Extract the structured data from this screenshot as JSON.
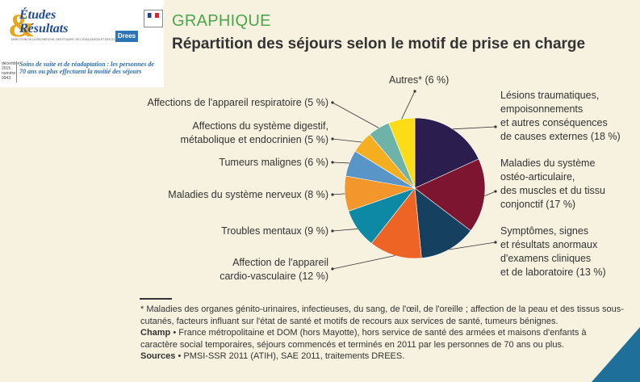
{
  "brand": {
    "name_line1": "Études",
    "name_line2": "Résultats",
    "tagline": "DIRECTION DE LA RECHERCHE, DES ÉTUDES, DE L'ÉVALUATION ET DES STATISTIQUES",
    "drees_logo_text": "Drees",
    "issue_month": "décembre",
    "issue_year": "2015",
    "issue_label": "numéro",
    "issue_number": "0943",
    "issue_title": "Soins de suite et de réadaptation : les personnes de 70 ans ou plus effectuent la moitié des séjours"
  },
  "section_label": "GRAPHIQUE",
  "title": "Répartition des séjours selon le motif de prise en charge",
  "chart_data": {
    "type": "pie",
    "title": "Répartition des séjours selon le motif de prise en charge",
    "start": "top, clockwise",
    "slices": [
      {
        "label": "Lésions traumatiques, empoisonnements et autres conséquences de causes externes (18 %)",
        "value": 18,
        "color": "#2b1e4e"
      },
      {
        "label": "Maladies du système ostéo-articulaire, des muscles et du tissu conjonctif (17 %)",
        "value": 17,
        "color": "#7d1530"
      },
      {
        "label": "Symptômes, signes et résultats anormaux d'examens cliniques et de laboratoire (13 %)",
        "value": 13,
        "color": "#16405f"
      },
      {
        "label": "Affection de l'appareil cardio-vasculaire (12 %)",
        "value": 12,
        "color": "#ee6424"
      },
      {
        "label": "Troubles mentaux (9 %)",
        "value": 9,
        "color": "#0d88a5"
      },
      {
        "label": "Maladies du système nerveux (8 %)",
        "value": 8,
        "color": "#f3972d"
      },
      {
        "label": "Tumeurs malignes (6 %)",
        "value": 6,
        "color": "#5a95c7"
      },
      {
        "label": "Affections du système digestif, métabolique et endocrinien (5 %)",
        "value": 5,
        "color": "#f5ae1f"
      },
      {
        "label": "Affections de l'appareil respiratoire (5 %)",
        "value": 5,
        "color": "#6fb3a8"
      },
      {
        "label": "Autres* (6 %)",
        "value": 6,
        "color": "#fbdc17"
      }
    ]
  },
  "labels": {
    "trauma": [
      "Lésions traumatiques,",
      "empoisonnements",
      "et autres conséquences",
      "de causes externes (18 %)"
    ],
    "osteo": [
      "Maladies du système",
      "ostéo-articulaire,",
      "des muscles et du tissu",
      "conjonctif (17 %)"
    ],
    "symptomes": [
      "Symptômes, signes",
      "et résultats anormaux",
      "d'examens cliniques",
      "et de laboratoire (13 %)"
    ],
    "cardio": [
      "Affection de l'appareil",
      "cardio-vasculaire (12 %)"
    ],
    "mentaux": [
      "Troubles mentaux (9 %)"
    ],
    "nerveux": [
      "Maladies du système nerveux (8 %)"
    ],
    "tumeurs": [
      "Tumeurs malignes (6 %)"
    ],
    "digestif": [
      "Affections du système digestif,",
      "métabolique et endocrinien (5 %)"
    ],
    "respiratoire": [
      "Affections de l'appareil respiratoire (5 %)"
    ],
    "autres": [
      "Autres* (6 %)"
    ]
  },
  "footnotes": {
    "asterisk_note": "* Maladies des organes génito-urinaires, infectieuses, du sang, de l'œil, de l'oreille ; affection de la peau et des tissus sous-cutanés, facteurs influant sur l'état de santé et motifs de recours aux services de santé, tumeurs bénignes.",
    "champ_label": "Champ",
    "champ_text": "France métropolitaine et DOM (hors Mayotte), hors service de santé des armées et maisons d'enfants à caractère social temporaires, séjours commencés et terminés en 2011 par les personnes de 70 ans ou plus.",
    "sources_label": "Sources",
    "sources_text": "PMSI-SSR 2011 (ATIH), SAE 2011, traitements DREES."
  }
}
